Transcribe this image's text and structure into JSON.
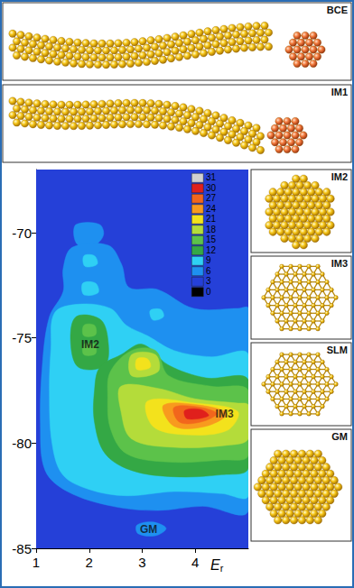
{
  "chart_data": {
    "type": "contour",
    "xlabel": "Er",
    "xlim": [
      1,
      5
    ],
    "xticks": [
      1,
      2,
      3,
      4
    ],
    "ylim": [
      -85,
      -67
    ],
    "yticks": [
      -85,
      -80,
      -75,
      -70
    ],
    "grid": false,
    "colorbar": {
      "ticks": [
        31,
        30,
        27,
        24,
        21,
        18,
        15,
        12,
        9,
        6,
        3,
        0
      ],
      "colors": [
        "#d0d0d0",
        "#e0201c",
        "#f2661c",
        "#f89a1e",
        "#f3e21c",
        "#b4dc3a",
        "#5cc24a",
        "#34a845",
        "#2fd0f4",
        "#1e90f0",
        "#2540d8",
        "#000000"
      ]
    },
    "contours": [
      {
        "level": 3,
        "polygons": [
          [
            [
              1,
              -85
            ],
            [
              5,
              -85
            ],
            [
              5,
              -67
            ],
            [
              1,
              -67
            ]
          ]
        ]
      },
      {
        "level": 6,
        "polygons": [
          [
            [
              1.76,
              -69.6
            ],
            [
              2.19,
              -69.6
            ],
            [
              2.27,
              -70.1
            ],
            [
              2.1,
              -70.6
            ],
            [
              1.8,
              -70.6
            ],
            [
              1.71,
              -70.1
            ]
          ],
          [
            [
              1.68,
              -70.7
            ],
            [
              2.36,
              -70.6
            ],
            [
              2.61,
              -71.5
            ],
            [
              2.75,
              -72.6
            ],
            [
              3.29,
              -72.7
            ],
            [
              3.97,
              -73.6
            ],
            [
              4.81,
              -73.6
            ],
            [
              5,
              -73.6
            ],
            [
              5,
              -83.2
            ],
            [
              4.14,
              -83.0
            ],
            [
              3.29,
              -83.2
            ],
            [
              2.44,
              -83.0
            ],
            [
              1.59,
              -82.3
            ],
            [
              1.17,
              -81.3
            ],
            [
              1.08,
              -79.1
            ],
            [
              1.12,
              -76.2
            ],
            [
              1.25,
              -74.0
            ],
            [
              1.51,
              -72.8
            ],
            [
              1.51,
              -71.7
            ]
          ],
          [
            [
              2.9,
              -83.9
            ],
            [
              3.2,
              -83.75
            ],
            [
              3.45,
              -84.05
            ],
            [
              3.25,
              -84.4
            ],
            [
              2.92,
              -84.3
            ]
          ]
        ]
      },
      {
        "level": 9,
        "polygons": [
          [
            [
              1.9,
              -71.1
            ],
            [
              2.1,
              -71.1
            ],
            [
              2.15,
              -71.5
            ],
            [
              1.92,
              -71.6
            ]
          ],
          [
            [
              1.88,
              -72.4
            ],
            [
              2.12,
              -72.4
            ],
            [
              2.17,
              -72.85
            ],
            [
              1.9,
              -72.95
            ]
          ],
          [
            [
              3.15,
              -73.7
            ],
            [
              3.35,
              -73.65
            ],
            [
              3.4,
              -74.0
            ],
            [
              3.2,
              -74.15
            ]
          ],
          [
            [
              1.35,
              -73.8
            ],
            [
              1.8,
              -73.4
            ],
            [
              2.4,
              -73.6
            ],
            [
              2.7,
              -74.4
            ],
            [
              3.1,
              -74.9
            ],
            [
              3.6,
              -75.6
            ],
            [
              4.3,
              -75.9
            ],
            [
              5,
              -75.8
            ],
            [
              5,
              -82.5
            ],
            [
              4.5,
              -82.4
            ],
            [
              3.6,
              -82.3
            ],
            [
              2.7,
              -82.5
            ],
            [
              2.0,
              -82.2
            ],
            [
              1.5,
              -81.5
            ],
            [
              1.3,
              -80
            ],
            [
              1.25,
              -77.5
            ],
            [
              1.28,
              -75.5
            ]
          ]
        ]
      },
      {
        "level": 12,
        "polygons": [
          [
            [
              1.75,
              -74.0
            ],
            [
              2.2,
              -74.1
            ],
            [
              2.35,
              -75
            ],
            [
              2.3,
              -76.3
            ],
            [
              1.8,
              -76.4
            ],
            [
              1.65,
              -75.2
            ]
          ],
          [
            [
              2.2,
              -76.4
            ],
            [
              2.6,
              -75.8
            ],
            [
              3.0,
              -75.3
            ],
            [
              3.5,
              -76.3
            ],
            [
              4.2,
              -76.9
            ],
            [
              5,
              -77.0
            ],
            [
              5,
              -81.2
            ],
            [
              4.5,
              -81.5
            ],
            [
              3.6,
              -81.6
            ],
            [
              2.8,
              -81.3
            ],
            [
              2.3,
              -80.5
            ],
            [
              2.1,
              -79
            ],
            [
              2.1,
              -77.5
            ]
          ]
        ]
      },
      {
        "level": 15,
        "polygons": [
          [
            [
              1.9,
              -74.4
            ],
            [
              2.1,
              -74.4
            ],
            [
              2.12,
              -74.85
            ],
            [
              1.9,
              -74.9
            ]
          ],
          [
            [
              1.9,
              -75.3
            ],
            [
              2.1,
              -75.3
            ],
            [
              2.12,
              -75.75
            ],
            [
              1.9,
              -75.8
            ]
          ],
          [
            [
              2.4,
              -76.6
            ],
            [
              2.8,
              -75.6
            ],
            [
              3.25,
              -75.6
            ],
            [
              3.5,
              -76.8
            ],
            [
              4.3,
              -77.3
            ],
            [
              5,
              -77.5
            ],
            [
              5,
              -80.6
            ],
            [
              4.5,
              -80.8
            ],
            [
              3.5,
              -80.9
            ],
            [
              2.7,
              -80.5
            ],
            [
              2.4,
              -79.3
            ],
            [
              2.35,
              -77.8
            ]
          ]
        ]
      },
      {
        "level": 18,
        "polygons": [
          [
            [
              2.8,
              -75.8
            ],
            [
              3.25,
              -75.8
            ],
            [
              3.3,
              -76.6
            ],
            [
              2.8,
              -76.8
            ]
          ],
          [
            [
              2.6,
              -77.3
            ],
            [
              3.3,
              -77.4
            ],
            [
              4.0,
              -77.9
            ],
            [
              4.8,
              -78.1
            ],
            [
              5,
              -78.2
            ],
            [
              5,
              -79.8
            ],
            [
              4.6,
              -80.1
            ],
            [
              3.6,
              -80.2
            ],
            [
              2.8,
              -79.8
            ],
            [
              2.6,
              -78.5
            ]
          ]
        ]
      },
      {
        "level": 21,
        "polygons": [
          [
            [
              2.9,
              -76.0
            ],
            [
              3.1,
              -76.0
            ],
            [
              3.15,
              -76.4
            ],
            [
              2.9,
              -76.5
            ]
          ],
          [
            [
              3.1,
              -78.0
            ],
            [
              4.0,
              -78.1
            ],
            [
              4.8,
              -78.5
            ],
            [
              4.6,
              -79.4
            ],
            [
              3.8,
              -79.6
            ],
            [
              3.2,
              -79.2
            ]
          ]
        ]
      },
      {
        "level": 24,
        "polygons": [
          [
            [
              3.4,
              -78.2
            ],
            [
              4.1,
              -78.2
            ],
            [
              4.6,
              -78.6
            ],
            [
              4.2,
              -79.2
            ],
            [
              3.6,
              -79.2
            ]
          ]
        ]
      },
      {
        "level": 27,
        "polygons": [
          [
            [
              3.6,
              -78.3
            ],
            [
              4.1,
              -78.3
            ],
            [
              4.4,
              -78.6
            ],
            [
              4.1,
              -79.0
            ],
            [
              3.7,
              -79.0
            ]
          ]
        ]
      },
      {
        "level": 30,
        "polygons": [
          [
            [
              3.8,
              -78.45
            ],
            [
              4.1,
              -78.4
            ],
            [
              4.25,
              -78.7
            ],
            [
              3.85,
              -78.85
            ]
          ]
        ]
      }
    ],
    "annotations": [
      {
        "text": "IM2",
        "x": 2.02,
        "y": -75.3
      },
      {
        "text": "IM3",
        "x": 4.55,
        "y": -78.6
      },
      {
        "text": "GM",
        "x": 3.12,
        "y": -84.1
      }
    ]
  },
  "panels": [
    "BCE",
    "IM1",
    "IM2",
    "IM3",
    "SLM",
    "GM"
  ]
}
